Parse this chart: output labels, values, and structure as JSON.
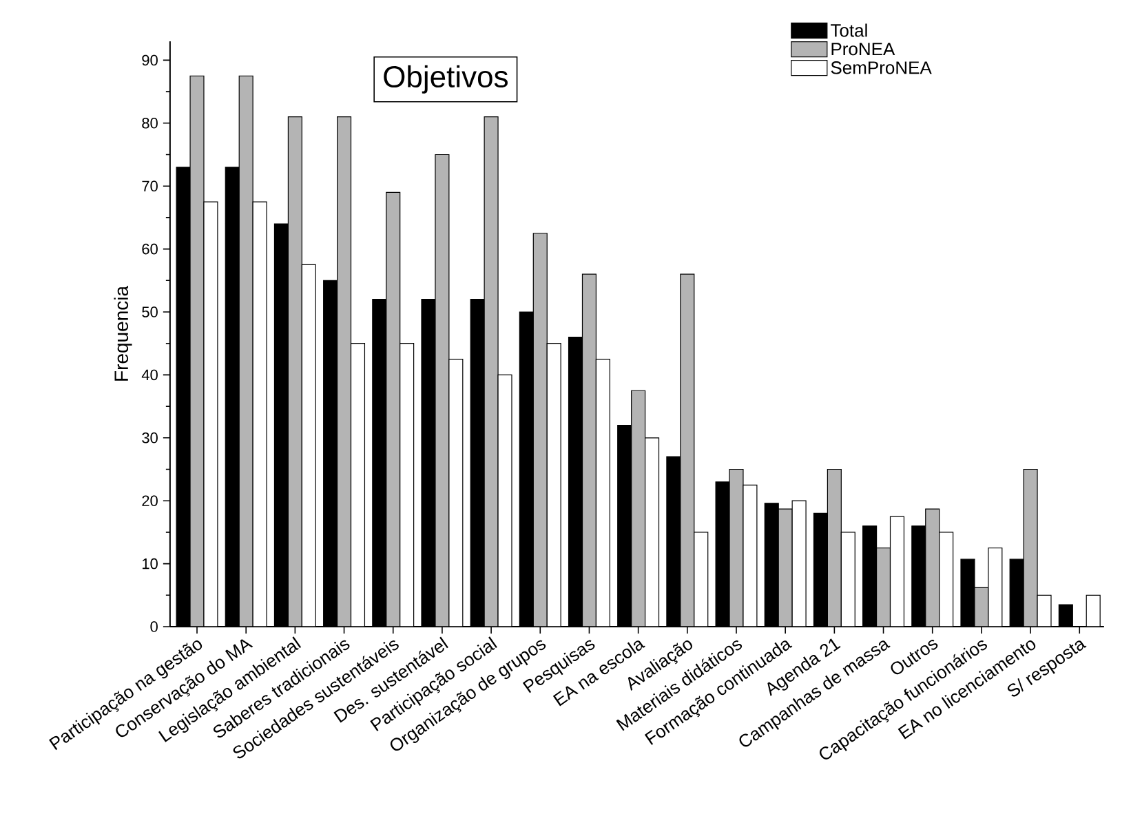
{
  "chart_data": {
    "type": "bar",
    "title": "Objetivos",
    "ylabel": "Frequencia",
    "categories": [
      "Participação na gestão",
      "Conservação do MA",
      "Legislação ambiental",
      "Saberes tradicionais",
      "Sociedades sustentáveis",
      "Des. sustentável",
      "Participação social",
      "Organização de grupos",
      "Pesquisas",
      "EA na escola",
      "Avaliação",
      "Materiais didáticos",
      "Formação continuada",
      "Agenda 21",
      "Campanhas de massa",
      "Outros",
      "Capacitação funcionários",
      "EA no licenciamento",
      "S/ resposta"
    ],
    "series": [
      {
        "name": "Total",
        "color": "#000000",
        "values": [
          73,
          73,
          64,
          55,
          52,
          52,
          52,
          50,
          46,
          32,
          27,
          23,
          19.6,
          18,
          16,
          16,
          10.7,
          10.7,
          3.5
        ]
      },
      {
        "name": "ProNEA",
        "color": "#b4b4b4",
        "values": [
          87.5,
          87.5,
          81,
          81,
          69,
          75,
          81,
          62.5,
          56,
          37.5,
          56,
          25,
          18.7,
          25,
          12.5,
          18.7,
          6.2,
          25,
          null
        ]
      },
      {
        "name": "SemProNEA",
        "color": "#ffffff",
        "values": [
          67.5,
          67.5,
          57.5,
          45,
          45,
          42.5,
          40,
          45,
          42.5,
          30,
          15,
          22.5,
          20,
          15,
          17.5,
          15,
          12.5,
          5,
          5
        ]
      }
    ],
    "ylim": [
      0,
      93
    ],
    "yticks": [
      0,
      10,
      20,
      30,
      40,
      50,
      60,
      70,
      80,
      90
    ],
    "legend": "top right"
  }
}
